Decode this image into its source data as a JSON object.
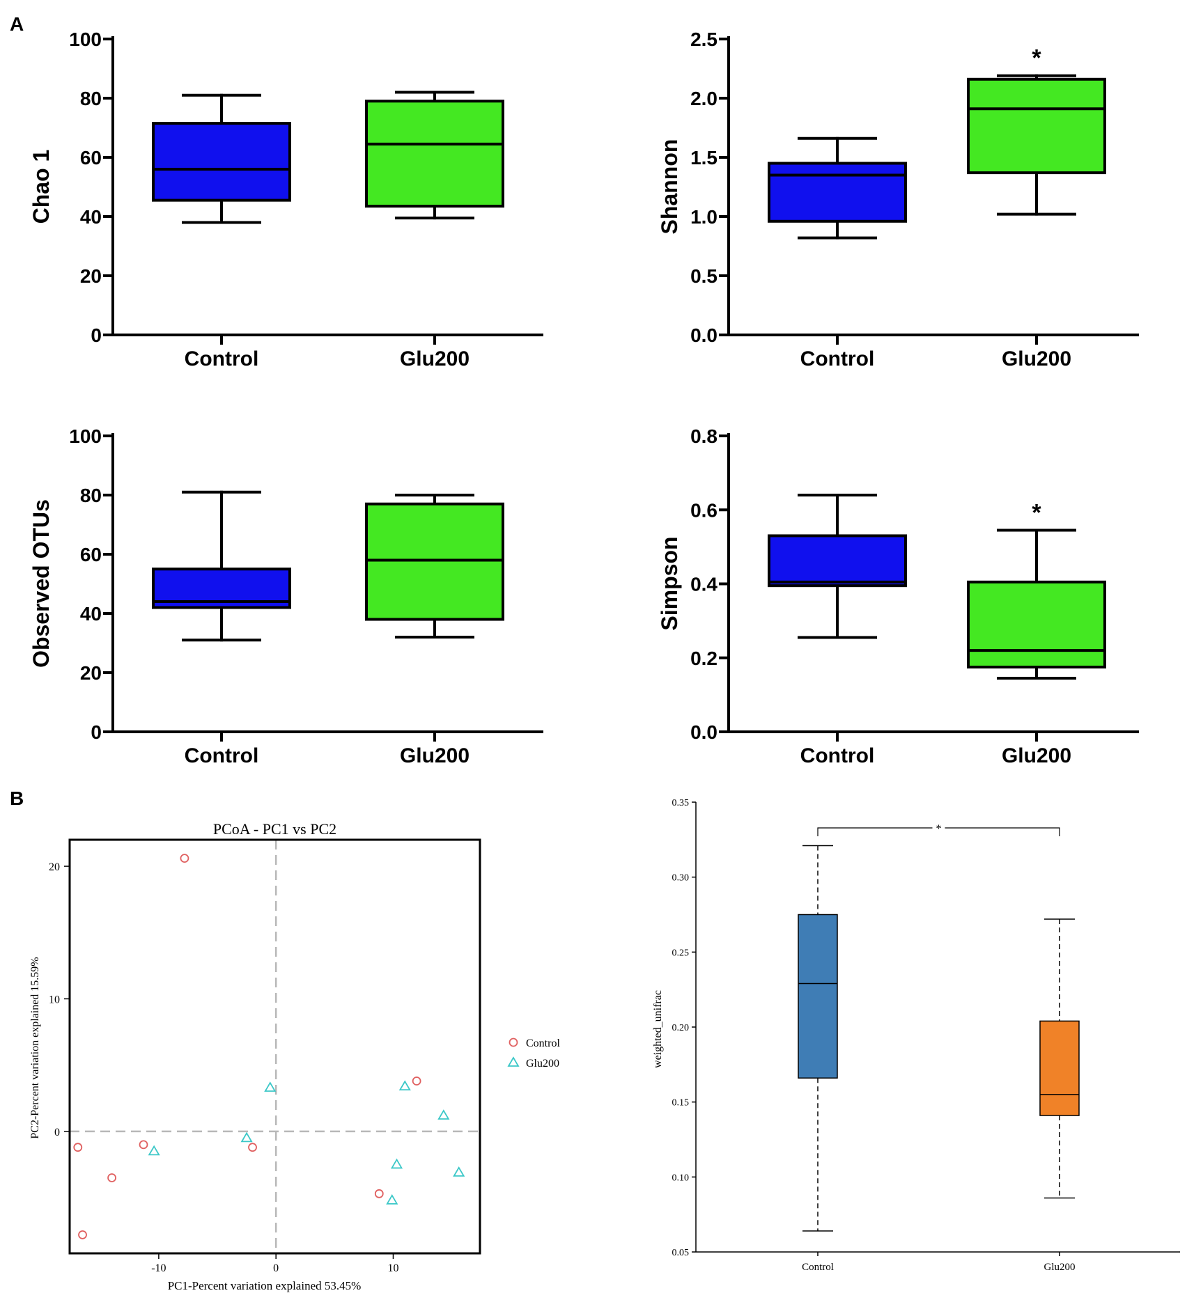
{
  "panel_labels": [
    "A",
    "B"
  ],
  "colors": {
    "control_fill": "#1010ee",
    "glu_fill": "#44e822",
    "control_steel": "#3f7db5",
    "glu_orange": "#f08228",
    "control_point": "#e06060",
    "glu_point": "#3cc8c8",
    "dashed_axis": "#b8b8b8"
  },
  "chart_data": [
    {
      "id": "chao1",
      "type": "box",
      "ylabel": "Chao 1",
      "categories": [
        "Control",
        "Glu200"
      ],
      "ylim": [
        0,
        100
      ],
      "yticks": [
        0,
        20,
        40,
        60,
        80,
        100
      ],
      "ytick_labels": [
        "0",
        "20",
        "40",
        "60",
        "80",
        "100"
      ],
      "boxes": [
        {
          "name": "Control",
          "min": 38,
          "q1": 45.5,
          "median": 56,
          "q3": 71.5,
          "max": 81,
          "annotation": ""
        },
        {
          "name": "Glu200",
          "min": 39.5,
          "q1": 43.5,
          "median": 64.5,
          "q3": 79,
          "max": 82,
          "annotation": ""
        }
      ]
    },
    {
      "id": "shannon",
      "type": "box",
      "ylabel": "Shannon",
      "categories": [
        "Control",
        "Glu200"
      ],
      "ylim": [
        0,
        2.5
      ],
      "yticks": [
        0,
        0.5,
        1.0,
        1.5,
        2.0,
        2.5
      ],
      "ytick_labels": [
        "0.0",
        "0.5",
        "1.0",
        "1.5",
        "2.0",
        "2.5"
      ],
      "boxes": [
        {
          "name": "Control",
          "min": 0.82,
          "q1": 0.96,
          "median": 1.35,
          "q3": 1.45,
          "max": 1.66,
          "annotation": ""
        },
        {
          "name": "Glu200",
          "min": 1.02,
          "q1": 1.37,
          "median": 1.91,
          "q3": 2.16,
          "max": 2.19,
          "annotation": "*"
        }
      ]
    },
    {
      "id": "observed_otus",
      "type": "box",
      "ylabel": "Observed OTUs",
      "categories": [
        "Control",
        "Glu200"
      ],
      "ylim": [
        0,
        100
      ],
      "yticks": [
        0,
        20,
        40,
        60,
        80,
        100
      ],
      "ytick_labels": [
        "0",
        "20",
        "40",
        "60",
        "80",
        "100"
      ],
      "boxes": [
        {
          "name": "Control",
          "min": 31,
          "q1": 42,
          "median": 44,
          "q3": 55,
          "max": 81,
          "annotation": ""
        },
        {
          "name": "Glu200",
          "min": 32,
          "q1": 38,
          "median": 58,
          "q3": 77,
          "max": 80,
          "annotation": ""
        }
      ]
    },
    {
      "id": "simpson",
      "type": "box",
      "ylabel": "Simpson",
      "categories": [
        "Control",
        "Glu200"
      ],
      "ylim": [
        0,
        0.8
      ],
      "yticks": [
        0,
        0.2,
        0.4,
        0.6,
        0.8
      ],
      "ytick_labels": [
        "0.0",
        "0.2",
        "0.4",
        "0.6",
        "0.8"
      ],
      "boxes": [
        {
          "name": "Control",
          "min": 0.255,
          "q1": 0.395,
          "median": 0.405,
          "q3": 0.53,
          "max": 0.64,
          "annotation": ""
        },
        {
          "name": "Glu200",
          "min": 0.145,
          "q1": 0.175,
          "median": 0.22,
          "q3": 0.405,
          "max": 0.545,
          "annotation": "*"
        }
      ]
    },
    {
      "id": "pcoa",
      "type": "scatter",
      "title": "PCoA - PC1 vs PC2",
      "xlabel": "PC1-Percent variation explained 53.45%",
      "ylabel": "PC2-Percent variation explained 15.59%",
      "xlim": [
        -17.6,
        17.4
      ],
      "ylim": [
        -9.2,
        22
      ],
      "xticks": [
        -10,
        0,
        10
      ],
      "xtick_labels": [
        "-10",
        "0",
        "10"
      ],
      "yticks": [
        0,
        10,
        20
      ],
      "ytick_labels": [
        "0",
        "10",
        "20"
      ],
      "legend": [
        "Control",
        "Glu200"
      ],
      "series": [
        {
          "name": "Control",
          "marker": "circle",
          "points": [
            [
              -7.8,
              20.6
            ],
            [
              -16.9,
              -1.2
            ],
            [
              -11.3,
              -1.0
            ],
            [
              -14.0,
              -3.5
            ],
            [
              -16.5,
              -7.8
            ],
            [
              -2.0,
              -1.2
            ],
            [
              12.0,
              3.8
            ],
            [
              8.8,
              -4.7
            ]
          ]
        },
        {
          "name": "Glu200",
          "marker": "triangle",
          "points": [
            [
              -0.5,
              3.3
            ],
            [
              -10.4,
              -1.5
            ],
            [
              -2.5,
              -0.5
            ],
            [
              11.0,
              3.4
            ],
            [
              14.3,
              1.2
            ],
            [
              10.3,
              -2.5
            ],
            [
              15.6,
              -3.1
            ],
            [
              9.9,
              -5.2
            ]
          ]
        }
      ]
    },
    {
      "id": "weighted_unifrac",
      "type": "box",
      "ylabel": "weighted_unifrac",
      "categories": [
        "Control",
        "Glu200"
      ],
      "ylim": [
        0.05,
        0.35
      ],
      "yticks": [
        0.05,
        0.1,
        0.15,
        0.2,
        0.25,
        0.3,
        0.35
      ],
      "ytick_labels": [
        "0.05",
        "0.10",
        "0.15",
        "0.20",
        "0.25",
        "0.30",
        "0.35"
      ],
      "significance": "*",
      "boxes": [
        {
          "name": "Control",
          "min": 0.064,
          "q1": 0.166,
          "median": 0.229,
          "q3": 0.275,
          "max": 0.321
        },
        {
          "name": "Glu200",
          "min": 0.086,
          "q1": 0.141,
          "median": 0.155,
          "q3": 0.204,
          "max": 0.272
        }
      ]
    }
  ]
}
